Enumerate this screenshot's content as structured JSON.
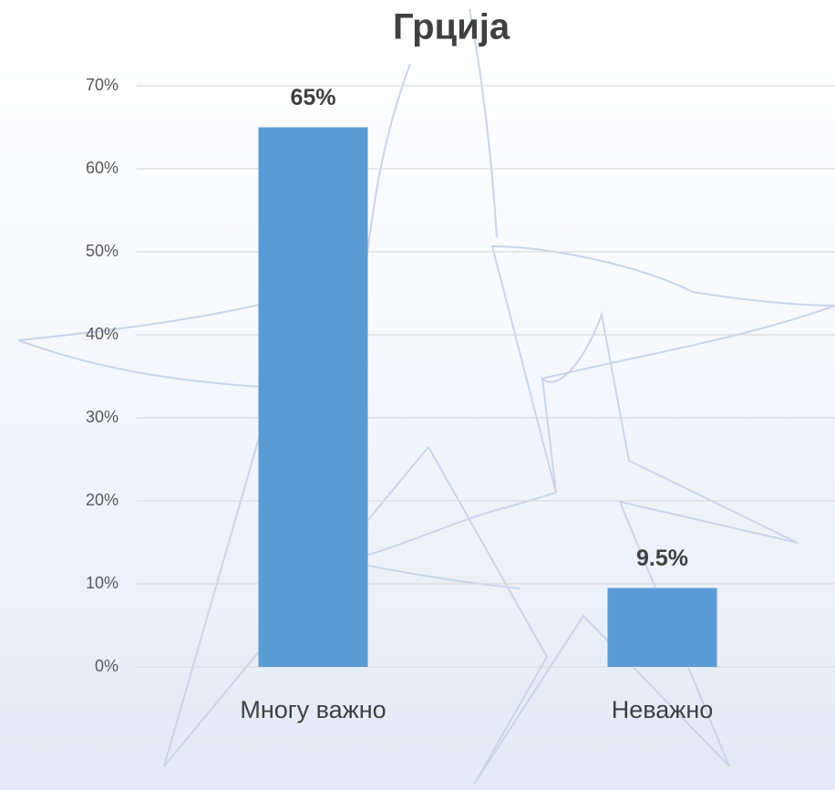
{
  "chart_data": {
    "type": "bar",
    "title": "Грција",
    "categories": [
      "Многу важно",
      "Неважно"
    ],
    "values": [
      65,
      9.5
    ],
    "value_labels": [
      "65%",
      "9.5%"
    ],
    "color": "#5b9bd5",
    "ylim": [
      0,
      70
    ],
    "yticks": [
      {
        "value": 0,
        "label": "0%"
      },
      {
        "value": 10,
        "label": "10%"
      },
      {
        "value": 20,
        "label": "20%"
      },
      {
        "value": 30,
        "label": "30%"
      },
      {
        "value": 40,
        "label": "40%"
      },
      {
        "value": 50,
        "label": "50%"
      },
      {
        "value": 60,
        "label": "60%"
      },
      {
        "value": 70,
        "label": "70%"
      }
    ],
    "grid": true
  }
}
